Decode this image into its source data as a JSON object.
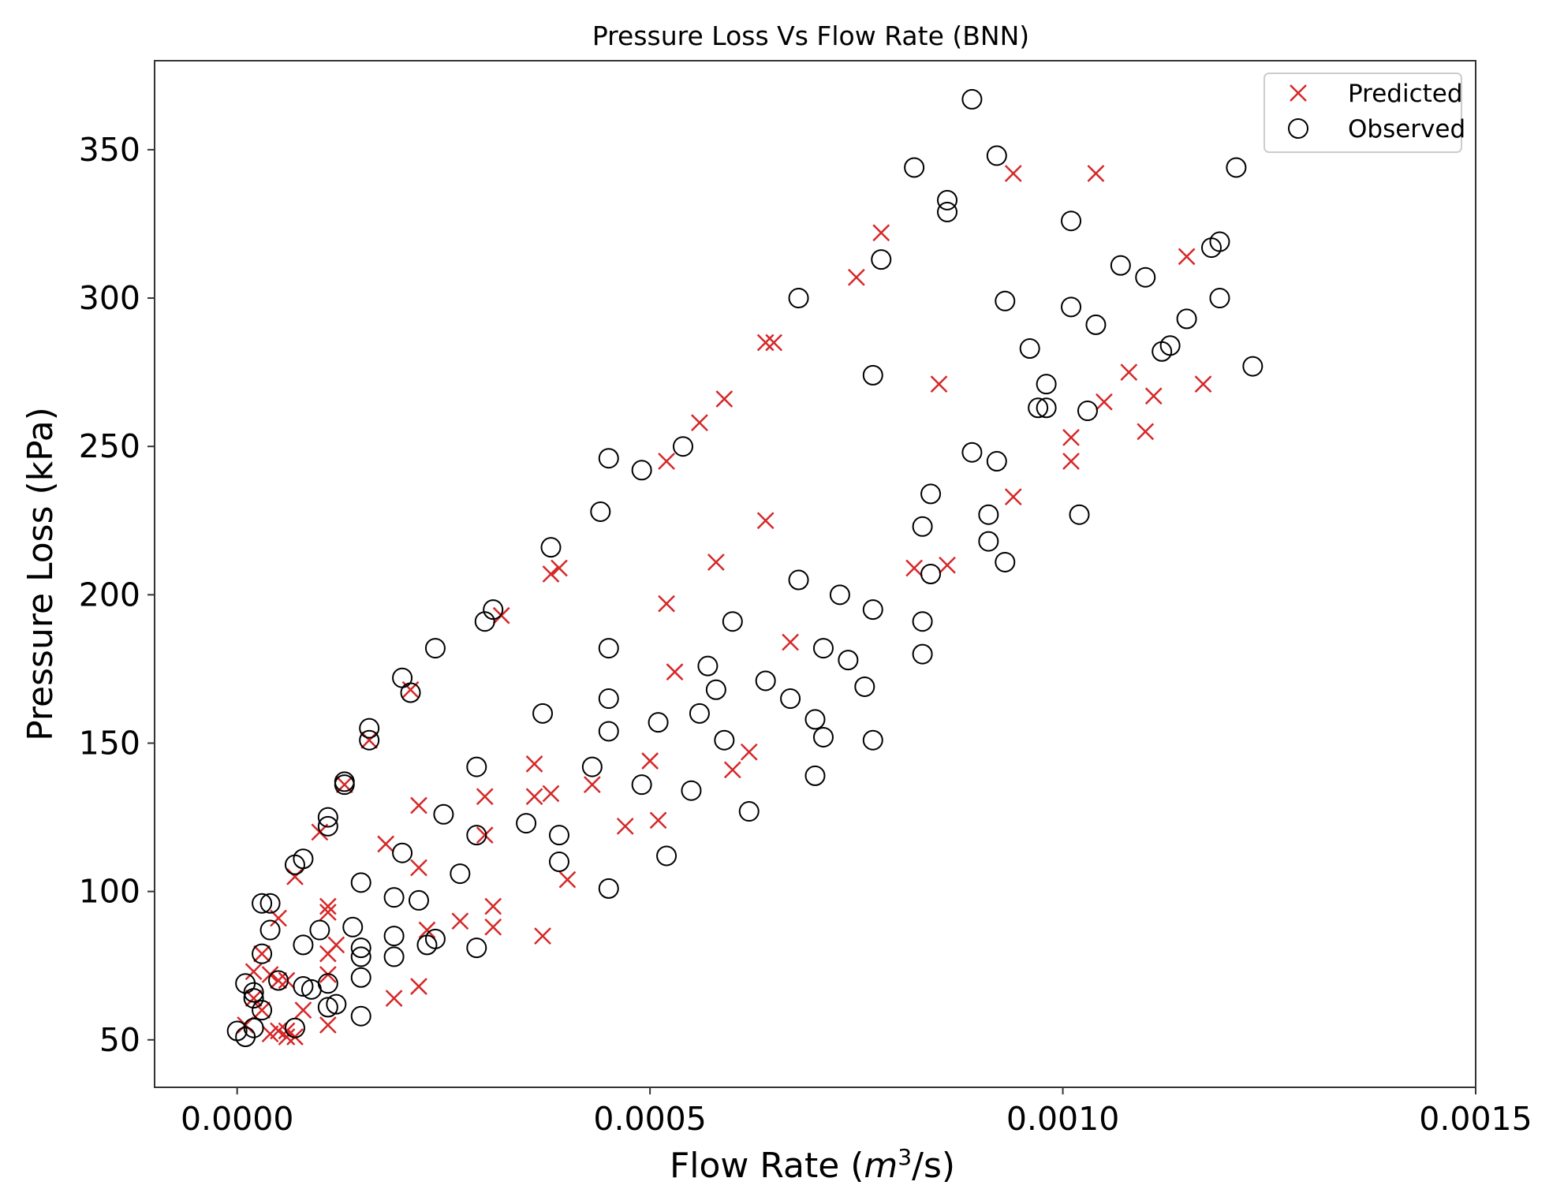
{
  "chart_data": {
    "type": "scatter",
    "title": "Pressure Loss Vs Flow Rate (BNN)",
    "xlabel": {
      "prefix": "Flow Rate (",
      "var": "m",
      "sup": "3",
      "suffix": "/s)"
    },
    "ylabel": "Pressure Loss (kPa)",
    "xlim": [
      -0.0001,
      0.0015
    ],
    "ylim": [
      34,
      380
    ],
    "xticks": [
      0.0,
      0.0005,
      0.001,
      0.0015
    ],
    "xtick_labels": [
      "0.0000",
      "0.0005",
      "0.0010",
      "0.0015"
    ],
    "yticks": [
      50,
      100,
      150,
      200,
      250,
      300,
      350
    ],
    "ytick_labels": [
      "50",
      "100",
      "150",
      "200",
      "250",
      "300",
      "350"
    ],
    "grid": false,
    "legend_position": "top-right",
    "series": [
      {
        "name": "Predicted",
        "marker": "x",
        "color": "#d62728",
        "points": [
          [
            0.00094,
            342
          ],
          [
            0.00104,
            342
          ],
          [
            0.00078,
            322
          ],
          [
            0.00075,
            307
          ],
          [
            0.00115,
            314
          ],
          [
            0.00065,
            285
          ],
          [
            0.00064,
            285
          ],
          [
            0.00059,
            266
          ],
          [
            0.00056,
            258
          ],
          [
            0.00052,
            245
          ],
          [
            0.00085,
            271
          ],
          [
            0.00108,
            275
          ],
          [
            0.00117,
            271
          ],
          [
            0.00105,
            265
          ],
          [
            0.00111,
            267
          ],
          [
            0.0011,
            255
          ],
          [
            0.00101,
            253
          ],
          [
            0.00101,
            245
          ],
          [
            0.00094,
            233
          ],
          [
            0.00064,
            225
          ],
          [
            0.00058,
            211
          ],
          [
            0.00082,
            209
          ],
          [
            0.00086,
            210
          ],
          [
            0.00039,
            209
          ],
          [
            0.00038,
            207
          ],
          [
            0.00052,
            197
          ],
          [
            0.00032,
            193
          ],
          [
            0.00067,
            184
          ],
          [
            0.00053,
            174
          ],
          [
            0.00021,
            168
          ],
          [
            0.00016,
            151
          ],
          [
            0.00062,
            147
          ],
          [
            0.0006,
            141
          ],
          [
            0.0005,
            144
          ],
          [
            0.00036,
            143
          ],
          [
            0.00043,
            136
          ],
          [
            0.00036,
            132
          ],
          [
            0.00038,
            133
          ],
          [
            0.0003,
            132
          ],
          [
            0.00022,
            129
          ],
          [
            0.00047,
            122
          ],
          [
            0.00051,
            124
          ],
          [
            0.0003,
            119
          ],
          [
            0.00018,
            116
          ],
          [
            0.0001,
            120
          ],
          [
            0.00013,
            136
          ],
          [
            0.00022,
            108
          ],
          [
            7e-05,
            105
          ],
          [
            0.0004,
            104
          ],
          [
            0.00011,
            95
          ],
          [
            0.00011,
            93
          ],
          [
            0.00031,
            95
          ],
          [
            0.00027,
            90
          ],
          [
            0.00023,
            87
          ],
          [
            0.00031,
            88
          ],
          [
            0.00037,
            85
          ],
          [
            0.00012,
            82
          ],
          [
            0.00011,
            79
          ],
          [
            5e-05,
            91
          ],
          [
            3e-05,
            79
          ],
          [
            4e-05,
            72
          ],
          [
            2e-05,
            73
          ],
          [
            0.00011,
            72
          ],
          [
            5e-05,
            70
          ],
          [
            6e-05,
            70
          ],
          [
            0.00019,
            64
          ],
          [
            0.00022,
            68
          ],
          [
            2e-05,
            64
          ],
          [
            3e-05,
            60
          ],
          [
            8e-05,
            60
          ],
          [
            0.00011,
            55
          ],
          [
            1e-05,
            55
          ],
          [
            5e-05,
            53
          ],
          [
            6e-05,
            51
          ],
          [
            7e-05,
            51
          ],
          [
            4e-05,
            52
          ],
          [
            6e-05,
            53
          ]
        ]
      },
      {
        "name": "Observed",
        "marker": "o",
        "color": "#000000",
        "points": [
          [
            0.00089,
            367
          ],
          [
            0.00092,
            348
          ],
          [
            0.00082,
            344
          ],
          [
            0.00086,
            333
          ],
          [
            0.00086,
            329
          ],
          [
            0.00121,
            344
          ],
          [
            0.00101,
            326
          ],
          [
            0.00119,
            319
          ],
          [
            0.00118,
            317
          ],
          [
            0.00078,
            313
          ],
          [
            0.00107,
            311
          ],
          [
            0.0011,
            307
          ],
          [
            0.00068,
            300
          ],
          [
            0.00093,
            299
          ],
          [
            0.00119,
            300
          ],
          [
            0.00101,
            297
          ],
          [
            0.00104,
            291
          ],
          [
            0.00115,
            293
          ],
          [
            0.00096,
            283
          ],
          [
            0.00112,
            282
          ],
          [
            0.00113,
            284
          ],
          [
            0.00077,
            274
          ],
          [
            0.00098,
            271
          ],
          [
            0.00123,
            277
          ],
          [
            0.00097,
            263
          ],
          [
            0.00098,
            263
          ],
          [
            0.00103,
            262
          ],
          [
            0.00045,
            246
          ],
          [
            0.00049,
            242
          ],
          [
            0.00054,
            250
          ],
          [
            0.00089,
            248
          ],
          [
            0.00092,
            245
          ],
          [
            0.00084,
            234
          ],
          [
            0.00044,
            228
          ],
          [
            0.00091,
            227
          ],
          [
            0.00102,
            227
          ],
          [
            0.00083,
            223
          ],
          [
            0.00038,
            216
          ],
          [
            0.00091,
            218
          ],
          [
            0.00093,
            211
          ],
          [
            0.00084,
            207
          ],
          [
            0.00068,
            205
          ],
          [
            0.00073,
            200
          ],
          [
            0.00077,
            195
          ],
          [
            0.00031,
            195
          ],
          [
            0.0003,
            191
          ],
          [
            0.0006,
            191
          ],
          [
            0.00083,
            191
          ],
          [
            0.00024,
            182
          ],
          [
            0.00045,
            182
          ],
          [
            0.00071,
            182
          ],
          [
            0.00083,
            180
          ],
          [
            0.00074,
            178
          ],
          [
            0.00057,
            176
          ],
          [
            0.0002,
            172
          ],
          [
            0.00064,
            171
          ],
          [
            0.00076,
            169
          ],
          [
            0.00058,
            168
          ],
          [
            0.00021,
            167
          ],
          [
            0.00045,
            165
          ],
          [
            0.00067,
            165
          ],
          [
            0.00037,
            160
          ],
          [
            0.00056,
            160
          ],
          [
            0.0007,
            158
          ],
          [
            0.00051,
            157
          ],
          [
            0.00016,
            155
          ],
          [
            0.00045,
            154
          ],
          [
            0.00059,
            151
          ],
          [
            0.00071,
            152
          ],
          [
            0.00077,
            151
          ],
          [
            0.00016,
            151
          ],
          [
            0.00029,
            142
          ],
          [
            0.00043,
            142
          ],
          [
            0.0007,
            139
          ],
          [
            0.00013,
            137
          ],
          [
            0.00013,
            136
          ],
          [
            0.00049,
            136
          ],
          [
            0.00055,
            134
          ],
          [
            0.00062,
            127
          ],
          [
            0.00025,
            126
          ],
          [
            0.00011,
            125
          ],
          [
            0.00011,
            122
          ],
          [
            0.00035,
            123
          ],
          [
            0.00029,
            119
          ],
          [
            0.00039,
            119
          ],
          [
            8e-05,
            111
          ],
          [
            7e-05,
            109
          ],
          [
            0.0002,
            113
          ],
          [
            0.00052,
            112
          ],
          [
            0.00039,
            110
          ],
          [
            0.00027,
            106
          ],
          [
            0.00015,
            103
          ],
          [
            0.00045,
            101
          ],
          [
            0.00019,
            98
          ],
          [
            0.00022,
            97
          ],
          [
            3e-05,
            96
          ],
          [
            4e-05,
            96
          ],
          [
            0.00014,
            88
          ],
          [
            4e-05,
            87
          ],
          [
            0.0001,
            87
          ],
          [
            0.00019,
            85
          ],
          [
            0.00024,
            84
          ],
          [
            0.00023,
            82
          ],
          [
            8e-05,
            82
          ],
          [
            0.00015,
            81
          ],
          [
            0.00029,
            81
          ],
          [
            0.00019,
            78
          ],
          [
            0.00015,
            78
          ],
          [
            3e-05,
            79
          ],
          [
            0.00015,
            71
          ],
          [
            1e-05,
            69
          ],
          [
            8e-05,
            68
          ],
          [
            0.00011,
            69
          ],
          [
            9e-05,
            67
          ],
          [
            5e-05,
            70
          ],
          [
            2e-05,
            66
          ],
          [
            2e-05,
            64
          ],
          [
            0.00012,
            62
          ],
          [
            0.00011,
            61
          ],
          [
            3e-05,
            60
          ],
          [
            0.00015,
            58
          ],
          [
            7e-05,
            54
          ],
          [
            2e-05,
            54
          ],
          [
            0.0,
            53
          ],
          [
            1e-05,
            51
          ]
        ]
      }
    ]
  }
}
